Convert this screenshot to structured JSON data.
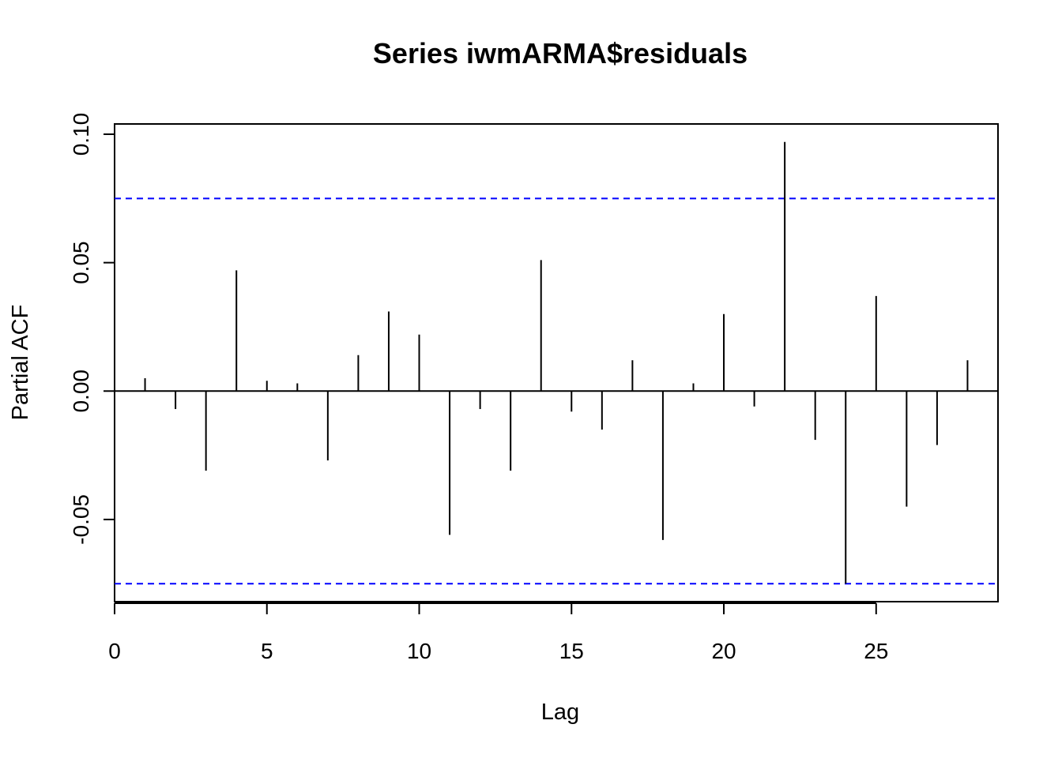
{
  "chart_data": {
    "type": "bar",
    "title": "Series  iwmARMA$residuals",
    "xlabel": "Lag",
    "ylabel": "Partial ACF",
    "xlim": [
      0,
      29
    ],
    "ylim": [
      -0.082,
      0.104
    ],
    "x_ticks": [
      0,
      5,
      10,
      15,
      20,
      25
    ],
    "x_tick_labels": [
      "0",
      "5",
      "10",
      "15",
      "20",
      "25"
    ],
    "y_ticks": [
      -0.05,
      0.0,
      0.05,
      0.1
    ],
    "y_tick_labels": [
      "-0.05",
      "0.00",
      "0.05",
      "0.10"
    ],
    "confidence_bounds": [
      0.075,
      -0.075
    ],
    "confidence_color": "#0000ff",
    "bar_color": "#000000",
    "lags": [
      1,
      2,
      3,
      4,
      5,
      6,
      7,
      8,
      9,
      10,
      11,
      12,
      13,
      14,
      15,
      16,
      17,
      18,
      19,
      20,
      21,
      22,
      23,
      24,
      25,
      26,
      27,
      28
    ],
    "values": [
      0.005,
      -0.007,
      -0.031,
      0.047,
      0.004,
      0.003,
      -0.027,
      0.014,
      0.031,
      0.022,
      -0.056,
      -0.007,
      -0.031,
      0.051,
      -0.008,
      -0.015,
      0.012,
      -0.058,
      0.003,
      0.03,
      -0.006,
      0.097,
      -0.019,
      -0.075,
      0.037,
      -0.045,
      -0.021,
      0.012
    ],
    "grid": false,
    "legend": "none"
  }
}
